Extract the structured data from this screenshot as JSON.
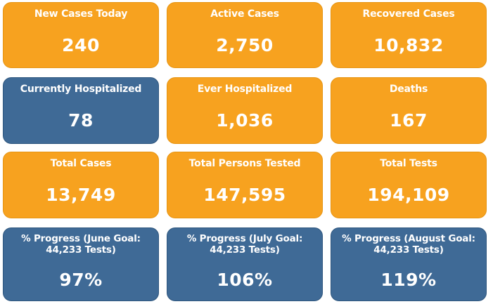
{
  "cards": [
    {
      "label": "New Cases Today",
      "value": "240"
    },
    {
      "label": "Active Cases",
      "value": "2,750"
    },
    {
      "label": "Recovered Cases",
      "value": "10,832"
    },
    {
      "label": "Currently Hospitalized",
      "value": "78"
    },
    {
      "label": "Ever Hospitalized",
      "value": "1,036"
    },
    {
      "label": "Deaths",
      "value": "167"
    },
    {
      "label": "Total Cases",
      "value": "13,749"
    },
    {
      "label": "Total Persons Tested",
      "value": "147,595"
    },
    {
      "label": "Total Tests",
      "value": "194,109"
    },
    {
      "label": "% Progress (June Goal: 44,233 Tests)",
      "value": "97%"
    },
    {
      "label": "% Progress (July Goal: 44,233 Tests)",
      "value": "106%"
    },
    {
      "label": "% Progress (August Goal: 44,233 Tests)",
      "value": "119%"
    }
  ],
  "colors": {
    "orange": "#f7a21f",
    "blue": "#3f6a96",
    "text": "#ffffff"
  }
}
